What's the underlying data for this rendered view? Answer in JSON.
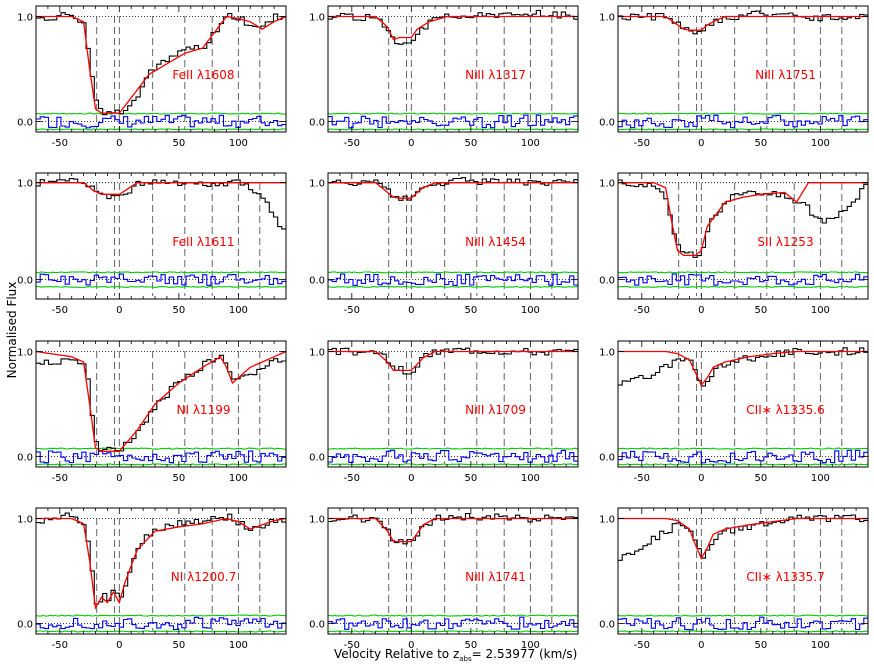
{
  "figure": {
    "ylabel": "Normalised Flux",
    "xlabel_prefix": "Velocity Relative to z",
    "xlabel_sub": "abs",
    "xlabel_suffix": "= 2.53977 (km/s)"
  },
  "colors": {
    "data": "#000000",
    "model": "#ff0000",
    "residual": "#0000ff",
    "error": "#00cc00",
    "frame": "#000000",
    "marker": "#555555"
  },
  "chart_data": {
    "type": "line",
    "xlim": [
      -70,
      140
    ],
    "x_ticks": [
      -50,
      0,
      50,
      100
    ],
    "y_ticks": [
      0.0,
      1.0
    ],
    "y_tick_labels": [
      "0.0",
      "1.0"
    ],
    "component_velocities": [
      -19,
      -4,
      0,
      28,
      55,
      78,
      100,
      118
    ],
    "panels": [
      {
        "label": "FeII λ1608",
        "col": 0,
        "row": 0,
        "ylim": [
          -0.1,
          1.1
        ],
        "x": [
          -70,
          -40,
          -30,
          -25,
          -20,
          -15,
          0,
          15,
          25,
          40,
          55,
          70,
          80,
          90,
          100,
          110,
          120,
          130,
          140
        ],
        "model": [
          1,
          1,
          0.95,
          0.5,
          0.12,
          0.08,
          0.08,
          0.3,
          0.45,
          0.55,
          0.65,
          0.7,
          0.85,
          1,
          0.98,
          0.95,
          0.88,
          0.95,
          1
        ],
        "data": [
          0.97,
          1.03,
          0.9,
          0.45,
          0.15,
          0.1,
          0.09,
          0.28,
          0.5,
          0.58,
          0.7,
          0.68,
          0.88,
          1.02,
          0.97,
          0.93,
          0.9,
          1.0,
          1.0
        ]
      },
      {
        "label": "NiII λ1317",
        "col": 1,
        "row": 0,
        "ylim": [
          -0.1,
          1.1
        ],
        "x": [
          -70,
          -30,
          -20,
          -15,
          -10,
          -5,
          0,
          5,
          15,
          30,
          60,
          100,
          140
        ],
        "model": [
          1,
          1,
          0.9,
          0.78,
          0.8,
          0.8,
          0.8,
          0.88,
          0.95,
          1,
          1,
          1,
          1
        ],
        "data": [
          1.0,
          0.98,
          0.85,
          0.7,
          0.75,
          0.72,
          0.78,
          0.85,
          0.97,
          1.02,
          1.0,
          1.03,
          1.0
        ]
      },
      {
        "label": "NiII λ1751",
        "col": 2,
        "row": 0,
        "ylim": [
          -0.1,
          1.1
        ],
        "x": [
          -70,
          -30,
          -20,
          -15,
          -10,
          -5,
          0,
          5,
          10,
          20,
          40,
          100,
          140
        ],
        "model": [
          1,
          1,
          0.92,
          0.88,
          0.87,
          0.87,
          0.87,
          0.92,
          0.95,
          1,
          1,
          1,
          1
        ],
        "data": [
          1.0,
          1.0,
          0.93,
          0.86,
          0.88,
          0.85,
          0.86,
          0.9,
          0.95,
          0.98,
          1.02,
          0.99,
          1.0
        ]
      },
      {
        "label": "FeII λ1611",
        "col": 0,
        "row": 1,
        "ylim": [
          -0.2,
          1.1
        ],
        "x": [
          -70,
          -30,
          -22,
          -15,
          -5,
          0,
          5,
          15,
          30,
          60,
          100,
          115,
          125,
          130,
          140
        ],
        "model": [
          1,
          1,
          0.92,
          0.88,
          0.88,
          0.88,
          0.92,
          1,
          1,
          1,
          1,
          1,
          1,
          1,
          1
        ],
        "data": [
          1.0,
          1.02,
          0.9,
          0.85,
          0.87,
          0.86,
          0.9,
          1.0,
          1.02,
          0.98,
          1.0,
          0.9,
          0.75,
          0.6,
          0.5
        ]
      },
      {
        "label": "NiII λ1454",
        "col": 1,
        "row": 1,
        "ylim": [
          -0.2,
          1.1
        ],
        "x": [
          -70,
          -30,
          -20,
          -15,
          -10,
          -5,
          0,
          5,
          10,
          20,
          40,
          100,
          140
        ],
        "model": [
          1,
          1,
          0.9,
          0.85,
          0.84,
          0.84,
          0.84,
          0.9,
          0.95,
          1,
          1,
          1,
          1
        ],
        "data": [
          1.0,
          1.0,
          0.9,
          0.83,
          0.85,
          0.82,
          0.84,
          0.9,
          0.96,
          1.0,
          1.02,
          1.0,
          1.0
        ]
      },
      {
        "label": "SII λ1253",
        "col": 2,
        "row": 1,
        "ylim": [
          -0.2,
          1.1
        ],
        "x": [
          -70,
          -40,
          -30,
          -25,
          -20,
          -15,
          -5,
          0,
          5,
          20,
          35,
          50,
          70,
          75,
          80,
          85,
          90,
          100,
          110,
          130,
          140
        ],
        "model": [
          1,
          1,
          0.95,
          0.6,
          0.3,
          0.25,
          0.25,
          0.3,
          0.55,
          0.8,
          0.85,
          0.88,
          0.9,
          0.85,
          0.8,
          0.9,
          1,
          1,
          1,
          1,
          1
        ],
        "data": [
          1.0,
          0.95,
          0.8,
          0.5,
          0.28,
          0.26,
          0.24,
          0.3,
          0.6,
          0.82,
          0.92,
          0.9,
          0.85,
          0.82,
          0.78,
          0.8,
          0.7,
          0.6,
          0.65,
          0.85,
          1.05
        ]
      },
      {
        "label": "NI λ1199",
        "col": 0,
        "row": 2,
        "ylim": [
          -0.1,
          1.1
        ],
        "x": [
          -70,
          -40,
          -30,
          -25,
          -20,
          -15,
          0,
          15,
          30,
          50,
          70,
          85,
          90,
          95,
          100,
          110,
          120,
          130,
          140
        ],
        "model": [
          1,
          0.95,
          0.9,
          0.5,
          0.08,
          0.05,
          0.05,
          0.25,
          0.5,
          0.7,
          0.85,
          0.95,
          0.85,
          0.7,
          0.75,
          0.85,
          0.9,
          0.95,
          1
        ],
        "data": [
          0.9,
          0.92,
          0.88,
          0.45,
          0.1,
          0.05,
          0.08,
          0.25,
          0.5,
          0.72,
          0.88,
          0.97,
          0.8,
          0.72,
          0.75,
          0.8,
          0.85,
          0.9,
          0.95
        ]
      },
      {
        "label": "NiII λ1709",
        "col": 1,
        "row": 2,
        "ylim": [
          -0.1,
          1.1
        ],
        "x": [
          -70,
          -30,
          -20,
          -15,
          -10,
          -5,
          0,
          5,
          10,
          20,
          40,
          100,
          140
        ],
        "model": [
          1,
          1,
          0.9,
          0.82,
          0.82,
          0.82,
          0.82,
          0.88,
          0.94,
          1,
          1,
          1,
          1
        ],
        "data": [
          1.0,
          1.0,
          0.9,
          0.8,
          0.84,
          0.8,
          0.82,
          0.9,
          0.95,
          1.0,
          1.02,
          1.0,
          1.0
        ]
      },
      {
        "label": "CII∗ λ1335.6",
        "col": 2,
        "row": 2,
        "ylim": [
          -0.1,
          1.1
        ],
        "x": [
          -70,
          -50,
          -30,
          -20,
          -10,
          -5,
          0,
          5,
          10,
          20,
          40,
          60,
          80,
          100,
          140
        ],
        "model": [
          1,
          1,
          1,
          0.98,
          0.92,
          0.8,
          0.68,
          0.75,
          0.85,
          0.9,
          0.95,
          0.98,
          1,
          1,
          1
        ],
        "data": [
          0.7,
          0.75,
          0.85,
          0.95,
          0.9,
          0.78,
          0.68,
          0.72,
          0.82,
          0.9,
          0.94,
          0.97,
          1.0,
          1.0,
          1.0
        ]
      },
      {
        "label": "NI λ1200.7",
        "col": 0,
        "row": 3,
        "ylim": [
          -0.1,
          1.1
        ],
        "x": [
          -70,
          -40,
          -30,
          -25,
          -20,
          -15,
          -10,
          -5,
          0,
          5,
          15,
          30,
          50,
          70,
          90,
          100,
          110,
          120,
          130,
          140
        ],
        "model": [
          1,
          1,
          0.95,
          0.6,
          0.15,
          0.25,
          0.2,
          0.3,
          0.2,
          0.4,
          0.7,
          0.88,
          0.92,
          0.95,
          1,
          0.97,
          0.9,
          0.94,
          0.98,
          1
        ],
        "data": [
          0.95,
          1.05,
          0.9,
          0.55,
          0.1,
          0.3,
          0.2,
          0.35,
          0.25,
          0.45,
          0.75,
          0.9,
          0.95,
          0.98,
          1.02,
          0.95,
          0.88,
          0.93,
          1.0,
          1.0
        ]
      },
      {
        "label": "NiII λ1741",
        "col": 1,
        "row": 3,
        "ylim": [
          -0.1,
          1.1
        ],
        "x": [
          -70,
          -30,
          -20,
          -15,
          -10,
          -5,
          0,
          5,
          10,
          20,
          40,
          100,
          140
        ],
        "model": [
          1,
          1,
          0.88,
          0.78,
          0.78,
          0.78,
          0.78,
          0.86,
          0.94,
          1,
          1,
          1,
          1
        ],
        "data": [
          1.0,
          1.0,
          0.88,
          0.76,
          0.8,
          0.76,
          0.78,
          0.86,
          0.95,
          1.0,
          1.02,
          1.0,
          1.0
        ]
      },
      {
        "label": "CII∗ λ1335.7",
        "col": 2,
        "row": 3,
        "ylim": [
          -0.1,
          1.1
        ],
        "x": [
          -70,
          -50,
          -30,
          -20,
          -10,
          -5,
          0,
          5,
          10,
          20,
          40,
          60,
          80,
          100,
          140
        ],
        "model": [
          1,
          1,
          1,
          0.98,
          0.9,
          0.75,
          0.62,
          0.72,
          0.85,
          0.9,
          0.94,
          0.97,
          1,
          1,
          1
        ],
        "data": [
          0.6,
          0.75,
          0.88,
          0.95,
          0.88,
          0.72,
          0.6,
          0.7,
          0.82,
          0.88,
          0.93,
          0.96,
          1.0,
          1.0,
          1.0
        ]
      }
    ]
  }
}
